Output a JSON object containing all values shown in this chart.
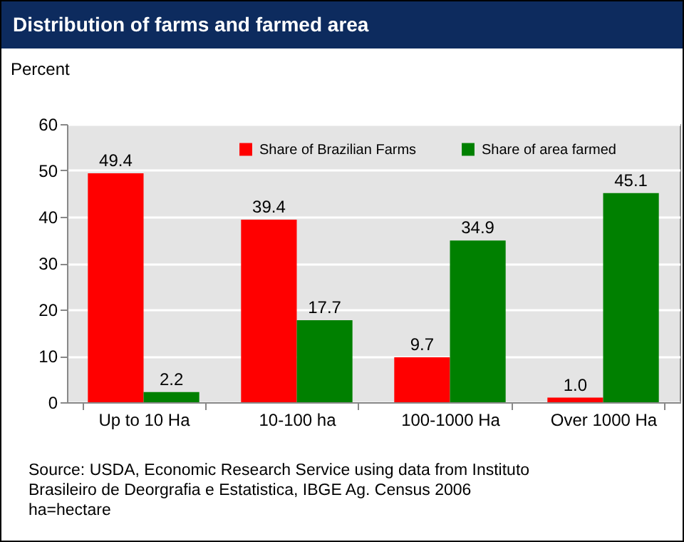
{
  "chart_data": {
    "type": "bar",
    "title": "Distribution of farms and farmed area",
    "ylabel": "Percent",
    "categories": [
      "Up to 10 Ha",
      "10-100 ha",
      "100-1000 Ha",
      "Over 1000 Ha"
    ],
    "series": [
      {
        "name": "Share of Brazilian Farms",
        "color": "#ff0000",
        "values": [
          49.4,
          39.4,
          9.7,
          1.0
        ],
        "value_labels": [
          "49.4",
          "39.4",
          "9.7",
          "1.0"
        ]
      },
      {
        "name": "Share of area farmed",
        "color": "#008000",
        "values": [
          2.2,
          17.7,
          34.9,
          45.1
        ],
        "value_labels": [
          "2.2",
          "17.7",
          "34.9",
          "45.1"
        ]
      }
    ],
    "ylim": [
      0,
      60
    ],
    "yticks": [
      0,
      10,
      20,
      30,
      40,
      50,
      60
    ],
    "grid": "y",
    "legend": "top",
    "annotations": [
      "Source: USDA, Economic Research Service using data from Instituto Brasileiro de Deorgrafia e Estatistica, IBGE Ag. Census 2006",
      "ha=hectare"
    ]
  }
}
